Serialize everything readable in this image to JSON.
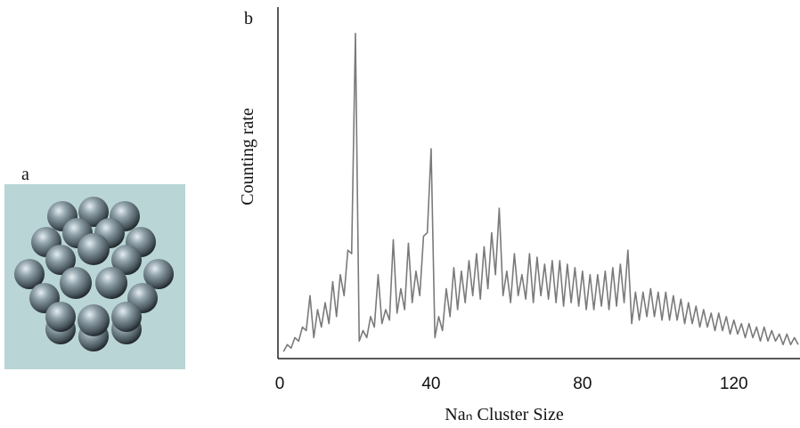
{
  "figure": {
    "panel_a_label": "a",
    "panel_b_label": "b"
  },
  "chart_data": {
    "type": "line",
    "x_label": "Naₙ Cluster Size",
    "y_label": "Counting rate",
    "xlim": [
      0,
      137
    ],
    "xticks": [
      0,
      40,
      80,
      120
    ],
    "ylim": [
      0,
      100
    ],
    "grid": false,
    "x": [
      1,
      2,
      3,
      4,
      5,
      6,
      7,
      8,
      9,
      10,
      11,
      12,
      13,
      14,
      15,
      16,
      17,
      18,
      19,
      20,
      21,
      22,
      23,
      24,
      25,
      26,
      27,
      28,
      29,
      30,
      31,
      32,
      33,
      34,
      35,
      36,
      37,
      38,
      39,
      40,
      41,
      42,
      43,
      44,
      45,
      46,
      47,
      48,
      49,
      50,
      51,
      52,
      53,
      54,
      55,
      56,
      57,
      58,
      59,
      60,
      61,
      62,
      63,
      64,
      65,
      66,
      67,
      68,
      69,
      70,
      71,
      72,
      73,
      74,
      75,
      76,
      77,
      78,
      79,
      80,
      81,
      82,
      83,
      84,
      85,
      86,
      87,
      88,
      89,
      90,
      91,
      92,
      93,
      94,
      95,
      96,
      97,
      98,
      99,
      100,
      101,
      102,
      103,
      104,
      105,
      106,
      107,
      108,
      109,
      110,
      111,
      112,
      113,
      114,
      115,
      116,
      117,
      118,
      119,
      120,
      121,
      122,
      123,
      124,
      125,
      126,
      127,
      128,
      129,
      130,
      131,
      132,
      133,
      134,
      135,
      136,
      137
    ],
    "series": [
      {
        "color": "#7a7a7a",
        "values": [
          2,
          4,
          3,
          6,
          5,
          9,
          8,
          18,
          6,
          14,
          9,
          16,
          10,
          22,
          12,
          24,
          18,
          31,
          30,
          93,
          5,
          8,
          6,
          12,
          9,
          24,
          10,
          14,
          11,
          34,
          13,
          20,
          14,
          33,
          16,
          25,
          18,
          35,
          36,
          60,
          6,
          12,
          8,
          20,
          12,
          26,
          14,
          25,
          16,
          28,
          18,
          30,
          17,
          32,
          20,
          36,
          24,
          43,
          18,
          25,
          16,
          30,
          18,
          24,
          17,
          30,
          16,
          29,
          18,
          27,
          17,
          28,
          16,
          28,
          15,
          27,
          16,
          26,
          15,
          25,
          14,
          24,
          14,
          24,
          15,
          25,
          14,
          26,
          15,
          27,
          16,
          31,
          10,
          19,
          11,
          19,
          12,
          20,
          12,
          19,
          11,
          19,
          11,
          18,
          11,
          17,
          10,
          16,
          10,
          15,
          9,
          14,
          9,
          13,
          8,
          13,
          8,
          12,
          7,
          11,
          7,
          10,
          6,
          10,
          6,
          9,
          5,
          9,
          5,
          8,
          5,
          7,
          4,
          7,
          4,
          6,
          4
        ]
      }
    ]
  }
}
